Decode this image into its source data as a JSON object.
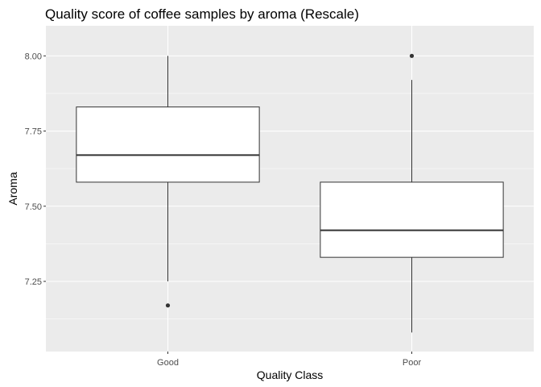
{
  "chart_data": {
    "type": "boxplot",
    "title": "Quality score of coffee samples by aroma (Rescale)",
    "xlabel": "Quality Class",
    "ylabel": "Aroma",
    "ylim": [
      7.0167,
      8.1
    ],
    "y_ticks": [
      7.25,
      7.5,
      7.75,
      8.0
    ],
    "y_tick_labels": [
      "7.25",
      "7.50",
      "7.75",
      "8.00"
    ],
    "grid": true,
    "categories": [
      "Good",
      "Poor"
    ],
    "boxes": [
      {
        "category": "Good",
        "whisker_low": 7.25,
        "q1": 7.58,
        "median": 7.67,
        "q3": 7.83,
        "whisker_high": 8.0,
        "outliers": [
          7.17
        ]
      },
      {
        "category": "Poor",
        "whisker_low": 7.08,
        "q1": 7.33,
        "median": 7.42,
        "q3": 7.58,
        "whisker_high": 7.92,
        "outliers": [
          8.0
        ]
      }
    ],
    "colors": {
      "panel_bg": "#ebebeb",
      "grid": "#ffffff",
      "box_fill": "#ffffff",
      "stroke": "#333333",
      "outlier": "#333333"
    }
  }
}
